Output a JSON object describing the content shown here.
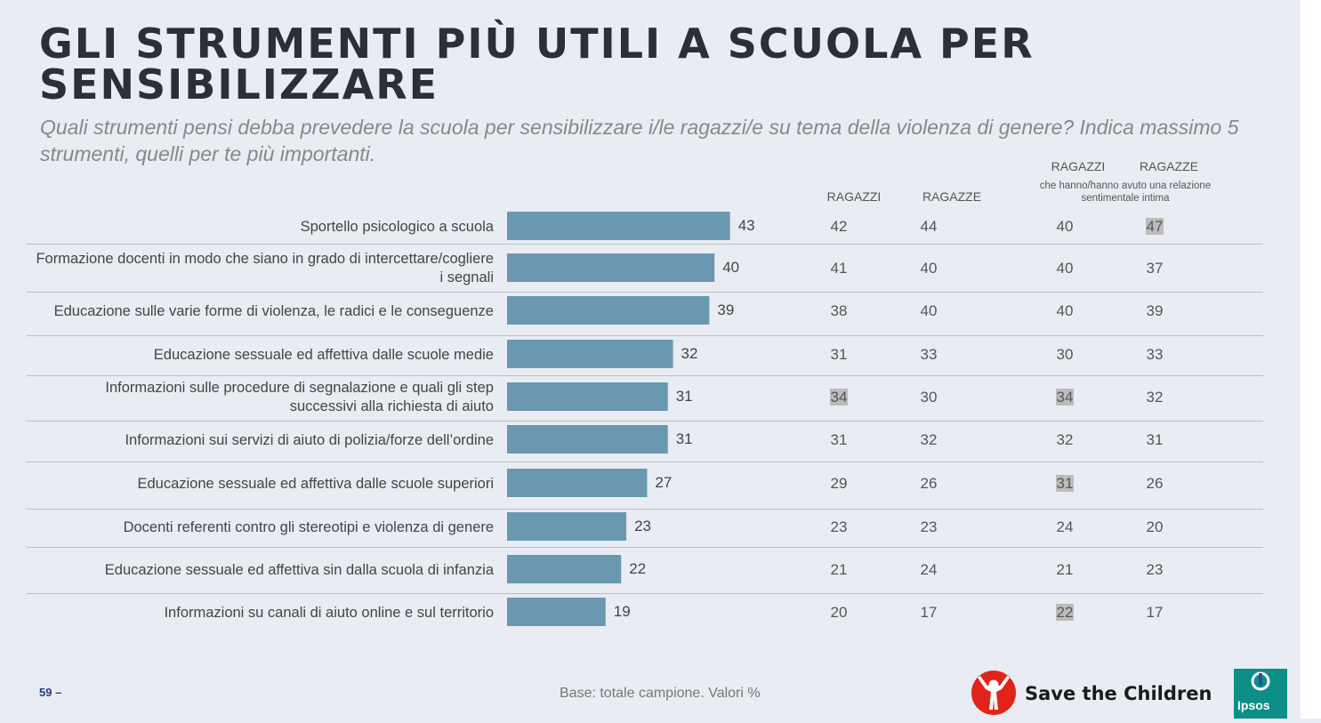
{
  "header": {
    "title": "GLI STRUMENTI PIÙ UTILI A SCUOLA PER SENSIBILIZZARE",
    "subtitle": "Quali strumenti pensi debba prevedere la scuola per sensibilizzare i/le ragazzi/e su tema della violenza di genere? Indica massimo 5 strumenti, quelli per te più importanti."
  },
  "columns": {
    "ragazzi": "RAGAZZI",
    "ragazze": "RAGAZZE",
    "rel_ragazzi": "RAGAZZI",
    "rel_ragazze": "RAGAZZE",
    "rel_note": "che hanno/hanno avuto una relazione sentimentale intima"
  },
  "chart_data": {
    "type": "bar",
    "orientation": "horizontal",
    "bar_color": "#6a98b0",
    "categories": [
      "Sportello psicologico a scuola",
      "Formazione docenti in modo che siano in grado di intercettare/cogliere i segnali",
      "Educazione sulle varie forme di violenza, le radici e le conseguenze",
      "Educazione sessuale ed affettiva dalle scuole medie",
      "Informazioni sulle procedure di segnalazione e quali gli step successivi alla richiesta di aiuto",
      "Informazioni sui servizi di aiuto di polizia/forze dell’ordine",
      "Educazione sessuale ed affettiva dalle scuole superiori",
      "Docenti referenti contro gli stereotipi e violenza di genere",
      "Educazione sessuale ed affettiva sin dalla scuola di infanzia",
      "Informazioni su canali di aiuto online e sul territorio"
    ],
    "values": [
      43,
      40,
      39,
      32,
      31,
      31,
      27,
      23,
      22,
      19
    ],
    "breakdown": {
      "ragazzi": [
        42,
        41,
        38,
        31,
        34,
        31,
        29,
        23,
        21,
        20
      ],
      "ragazze": [
        44,
        40,
        40,
        33,
        30,
        32,
        26,
        23,
        24,
        17
      ],
      "rel_ragazzi": [
        40,
        40,
        40,
        30,
        34,
        32,
        31,
        24,
        21,
        22
      ],
      "rel_ragazze": [
        47,
        37,
        39,
        33,
        32,
        31,
        26,
        20,
        23,
        17
      ]
    },
    "highlighted": [
      {
        "row": 0,
        "col": "rel_ragazze"
      },
      {
        "row": 4,
        "col": "ragazzi"
      },
      {
        "row": 4,
        "col": "rel_ragazzi"
      },
      {
        "row": 6,
        "col": "rel_ragazzi"
      },
      {
        "row": 9,
        "col": "rel_ragazzi"
      }
    ]
  },
  "footer": {
    "page_number": "59 –",
    "base_note": "Base: totale campione. Valori %",
    "logo_brand": "Save the Children",
    "logo_partner": "Ipsos"
  }
}
